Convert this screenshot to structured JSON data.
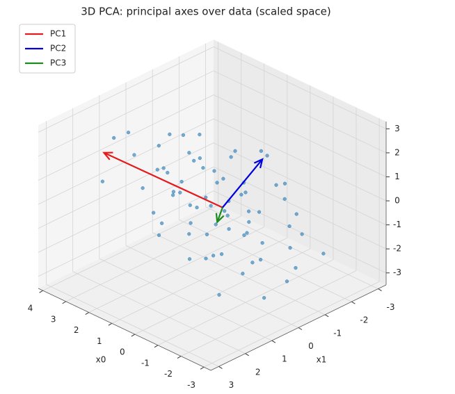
{
  "chart_data": {
    "type": "scatter3d",
    "title": "3D PCA: principal axes over data (scaled space)",
    "xlabel": "x0",
    "ylabel": "x1",
    "xlim": [
      -3.3,
      4.2
    ],
    "ylim": [
      -3.3,
      3.3
    ],
    "zlim": [
      -3.5,
      3.3
    ],
    "xticks": [
      -3,
      -2,
      -1,
      0,
      1,
      2,
      3,
      4
    ],
    "yticks": [
      -3,
      -2,
      -1,
      0,
      1,
      2,
      3
    ],
    "zticks": [
      -3,
      -2,
      -1,
      0,
      1,
      2,
      3
    ],
    "grid": true,
    "legend": "upper left",
    "point_color": "#1f77b4",
    "x": [
      0.5,
      1.2,
      -0.8,
      2.1,
      -1.5,
      0.0,
      0.3,
      -0.4,
      1.8,
      -2.0,
      2.8,
      3.4,
      3.6,
      -2.6,
      -1.2,
      0.9,
      1.5,
      -0.2,
      0.7,
      -1.0,
      2.4,
      -0.6,
      1.0,
      -1.8,
      0.2,
      1.4,
      -0.3,
      2.2,
      -2.3,
      0.6,
      -0.9,
      1.1,
      -1.4,
      0.4,
      2.6,
      -0.1,
      1.7,
      -2.8,
      0.8,
      -0.7,
      1.3,
      -1.6,
      3.0,
      0.1,
      -0.5,
      2.0,
      -1.1,
      0.9,
      -2.1,
      1.6,
      -0.4,
      0.3,
      2.3,
      -1.3,
      1.0,
      -0.8,
      0.5,
      1.9,
      -1.9,
      0.0,
      3.8,
      -3.0,
      2.5,
      -0.2,
      1.2,
      -1.7,
      0.6,
      -2.5,
      1.5,
      -0.6
    ],
    "y": [
      0.2,
      0.5,
      -0.3,
      0.4,
      -0.2,
      -0.8,
      1.0,
      0.6,
      -0.3,
      0.3,
      0.9,
      0.6,
      1.4,
      -0.5,
      -1.3,
      -1.1,
      1.3,
      0.1,
      -0.4,
      0.9,
      -0.6,
      -1.5,
      0.1,
      0.8,
      -0.2,
      -0.9,
      1.5,
      1.1,
      -1.0,
      0.7,
      -0.6,
      -0.1,
      0.4,
      -1.8,
      0.2,
      -0.9,
      0.6,
      0.0,
      1.7,
      -0.1,
      -1.6,
      -1.4,
      -0.2,
      0.5,
      0.2,
      -1.0,
      1.3,
      0.3,
      -0.7,
      0.9,
      -2.0,
      -0.5,
      0.0,
      0.0,
      1.0,
      0.5,
      -1.3,
      0.2,
      -0.9,
      1.2,
      0.8,
      -1.2,
      -1.3,
      0.8,
      -0.6,
      1.6,
      -2.2,
      0.6,
      0.3,
      -0.4
    ],
    "z": [
      0.3,
      0.8,
      -0.4,
      0.9,
      -0.9,
      0.6,
      -0.7,
      -0.2,
      1.3,
      -1.1,
      1.4,
      1.9,
      0.2,
      -1.6,
      0.2,
      1.1,
      -0.2,
      0.0,
      0.5,
      -1.0,
      1.6,
      0.4,
      -0.4,
      -1.5,
      1.0,
      0.4,
      -1.2,
      0.4,
      -0.6,
      0.2,
      -0.1,
      1.5,
      -0.3,
      1.2,
      0.5,
      -0.6,
      1.0,
      -1.8,
      -0.6,
      0.8,
      0.9,
      -0.3,
      1.1,
      -0.9,
      0.6,
      0.2,
      -0.8,
      1.7,
      -0.2,
      -0.9,
      0.1,
      -1.3,
      2.0,
      -1.7,
      0.6,
      0.3,
      -0.3,
      -0.1,
      -1.3,
      0.0,
      1.6,
      -1.2,
      1.2,
      -1.6,
      -0.8,
      -2.0,
      0.7,
      -2.3,
      0.1,
      -1.0
    ],
    "series": [
      {
        "name": "PC1",
        "color": "#e41a1c",
        "origin": [
          0,
          0,
          0
        ],
        "vector": [
          4.0,
          1.0,
          1.0
        ]
      },
      {
        "name": "PC2",
        "color": "#0000dd",
        "origin": [
          0,
          0,
          0
        ],
        "vector": [
          0.0,
          -1.5,
          1.2
        ]
      },
      {
        "name": "PC3",
        "color": "#1a8a1a",
        "origin": [
          0,
          0,
          0
        ],
        "vector": [
          0.0,
          0.2,
          -0.5
        ]
      }
    ]
  }
}
